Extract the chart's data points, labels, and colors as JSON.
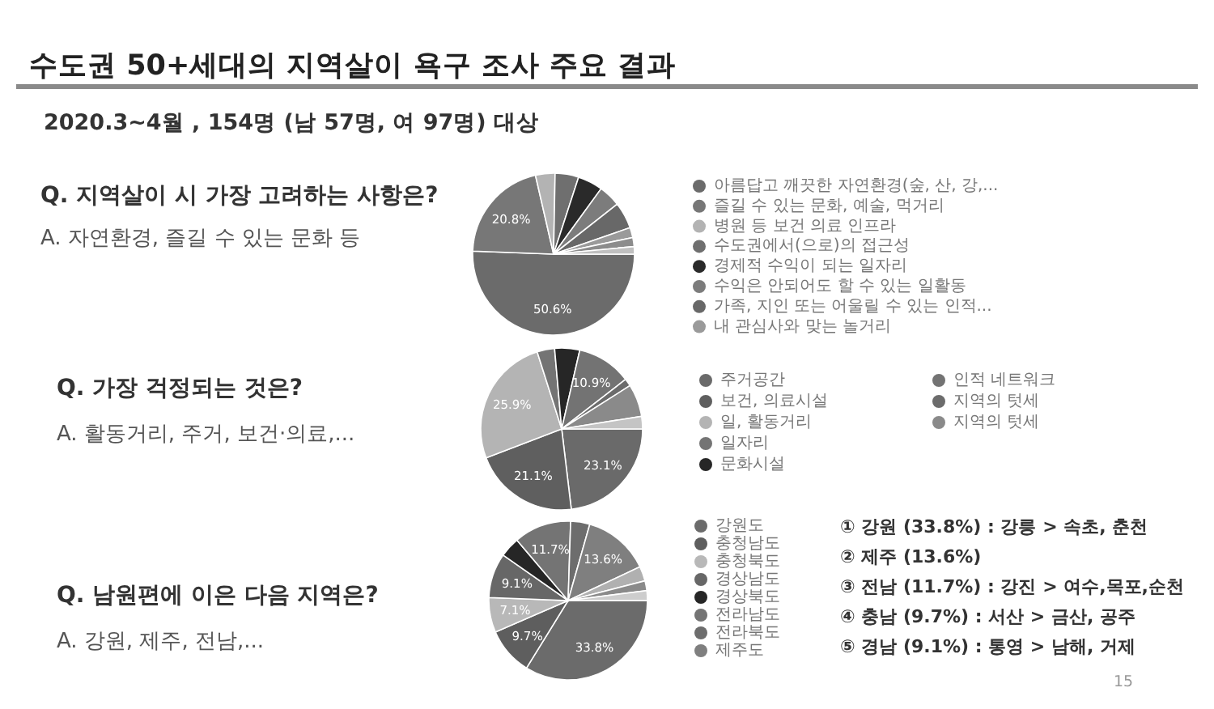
{
  "chart_data": [
    {
      "type": "other",
      "title": "수도권 50+세대의 지역살이 욕구 조사 주요 결과",
      "subtitle": "2020.3~4월 , 154명 (남 57명, 여 97명) 대상",
      "annotations": [
        "15"
      ]
    },
    {
      "type": "pie",
      "title": "Q. 지역살이 시 가장 고려하는 사항은?",
      "subtitle": "A. 자연환경, 즐길 수 있는 문화 등",
      "categories": [
        "아름답고 깨끗한 자연환경(숲, 산, 강,...",
        "즐길 수 있는 문화, 예술, 먹거리",
        "병원 등 보건 의료 인프라",
        "수도권에서(으로)의 접근성",
        "경제적 수익이 되는 일자리",
        "수익은 안되어도 할 수 있는 일활동",
        "가족, 지인 또는 어울릴 수 있는 인적...",
        "내 관심사와 맞는 놀거리",
        null,
        null
      ],
      "values": [
        50.6,
        20.8,
        3.9,
        4.7,
        5.0,
        4.4,
        5.3,
        2.0,
        1.8,
        1.5
      ],
      "colors": [
        "#6b6b6b",
        "#777777",
        "#b3b3b3",
        "#6f6f6f",
        "#2a2a2a",
        "#7c7c7c",
        "#686868",
        "#9a9a9a",
        "#8c8c8c",
        "#c0c0c0"
      ],
      "value_labels": [
        "50.6%",
        "20.8%",
        null,
        null,
        null,
        null,
        null,
        null,
        null,
        null
      ],
      "legend": "right"
    },
    {
      "type": "pie",
      "title": "Q. 가장 걱정되는 것은?",
      "subtitle": "A. 활동거리, 주거, 보건·의료,...",
      "categories": [
        "주거공간",
        "보건, 의료시설",
        "일, 활동거리",
        "일자리",
        "문화시설",
        "인적 네트워크",
        "지역의 텃세",
        "지역의 텃세",
        null
      ],
      "values": [
        23.1,
        21.1,
        25.9,
        3.5,
        5.0,
        10.9,
        1.5,
        6.5,
        2.5
      ],
      "colors": [
        "#6a6a6a",
        "#5f5f5f",
        "#b4b4b4",
        "#747474",
        "#262626",
        "#737373",
        "#6c6c6c",
        "#8a8a8a",
        "#c4c4c4"
      ],
      "value_labels": [
        "23.1%",
        "21.1%",
        "25.9%",
        null,
        null,
        "10.9%",
        null,
        null,
        null
      ],
      "legend": "right"
    },
    {
      "type": "pie",
      "title": "Q. 남원편에 이은 다음 지역은?",
      "subtitle": "A. 강원, 제주, 전남,...",
      "categories": [
        "강원도",
        "충청남도",
        "충청북도",
        "경상남도",
        "경상북도",
        "전라남도",
        "전라북도",
        "제주도",
        null,
        null,
        null
      ],
      "values": [
        33.8,
        9.7,
        7.1,
        9.1,
        4.1,
        11.7,
        3.9,
        13.6,
        3.0,
        2.0,
        2.0
      ],
      "colors": [
        "#6b6b6b",
        "#5e5e5e",
        "#b8b8b8",
        "#676767",
        "#262626",
        "#747474",
        "#6d6d6d",
        "#7f7f7f",
        "#b0b0b0",
        "#8a8a8a",
        "#cdcdcd"
      ],
      "value_labels": [
        "33.8%",
        "9.7%",
        "7.1%",
        "9.1%",
        null,
        "11.7%",
        null,
        "13.6%",
        null,
        null,
        null
      ],
      "legend": "right",
      "annotations": [
        "① 강원 (33.8%) : 강릉 > 속초, 춘천",
        "② 제주 (13.6%)",
        "③ 전남 (11.7%) : 강진 > 여수,목포,순천",
        "④ 충남 (9.7%) : 서산 > 금산, 공주",
        "⑤ 경남 (9.1%) : 통영 > 남해, 거제"
      ]
    }
  ]
}
